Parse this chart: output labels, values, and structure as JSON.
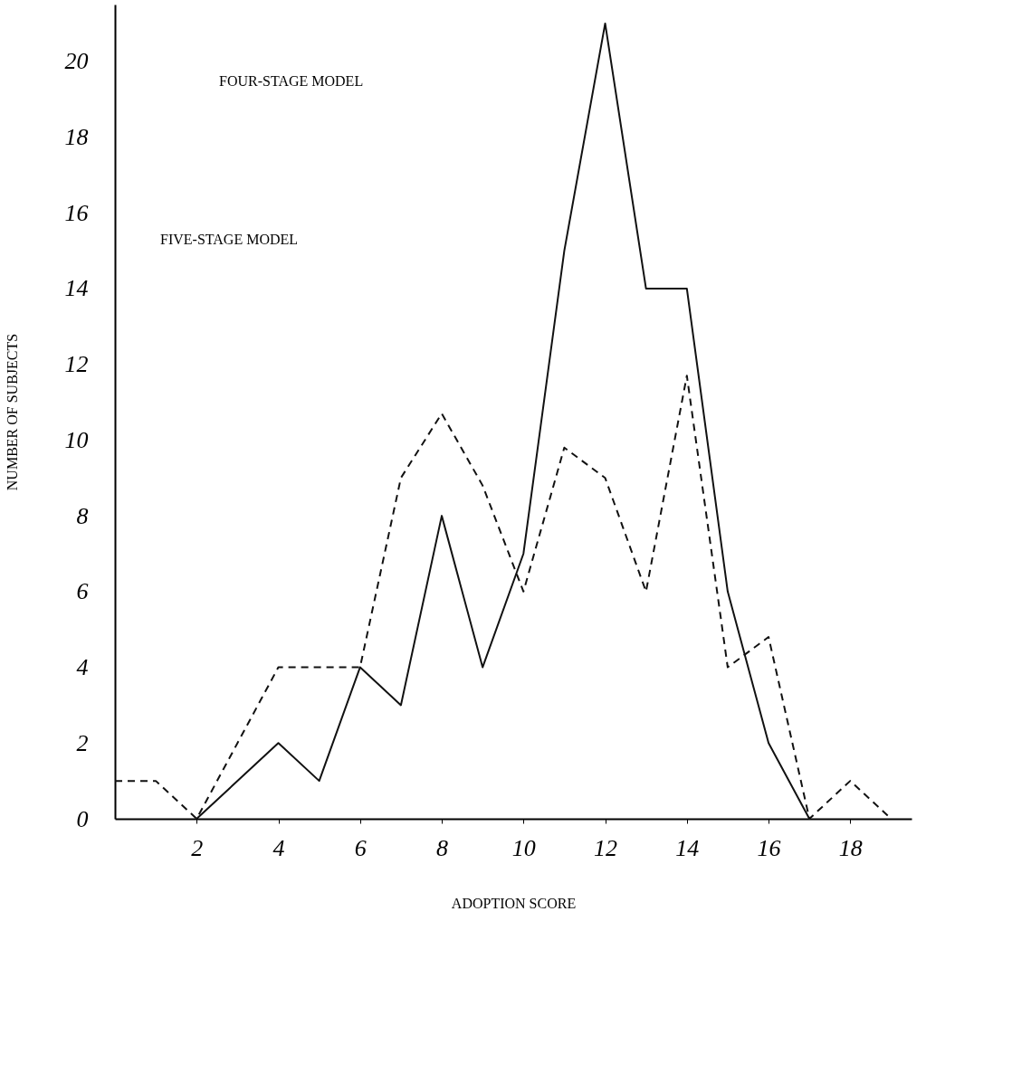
{
  "chart_data": {
    "type": "line",
    "xlabel": "ADOPTION SCORE",
    "ylabel": "NUMBER OF SUBJECTS",
    "xlim": [
      0,
      19.5
    ],
    "ylim": [
      0,
      21.5
    ],
    "xticks": [
      2,
      4,
      6,
      8,
      10,
      12,
      14,
      16,
      18
    ],
    "yticks": [
      0,
      2,
      4,
      6,
      8,
      10,
      12,
      14,
      16,
      18,
      20
    ],
    "grid": false,
    "marker": "none",
    "series": [
      {
        "color": "#111111",
        "line_style": "solid",
        "x": [
          2,
          4,
          5,
          6,
          7,
          8,
          9,
          10,
          11,
          12,
          13,
          14,
          15,
          16,
          17
        ],
        "values": [
          0,
          2,
          1,
          4,
          3,
          8,
          4,
          7,
          15,
          21,
          14,
          14,
          6,
          2,
          0
        ]
      },
      {
        "color": "#111111",
        "line_style": "dashed",
        "x": [
          0,
          1,
          2,
          3,
          4,
          5,
          6,
          7,
          8,
          9,
          10,
          11,
          12,
          13,
          14,
          15,
          16,
          17,
          18,
          19
        ],
        "values": [
          1,
          1,
          0,
          2,
          4,
          4,
          4,
          9,
          10.7,
          8.8,
          6,
          9.8,
          9,
          6,
          11.7,
          4,
          4.8,
          0,
          1,
          0
        ]
      }
    ],
    "annotations": [
      "FOUR-STAGE MODEL",
      "FIVE-STAGE MODEL"
    ]
  }
}
